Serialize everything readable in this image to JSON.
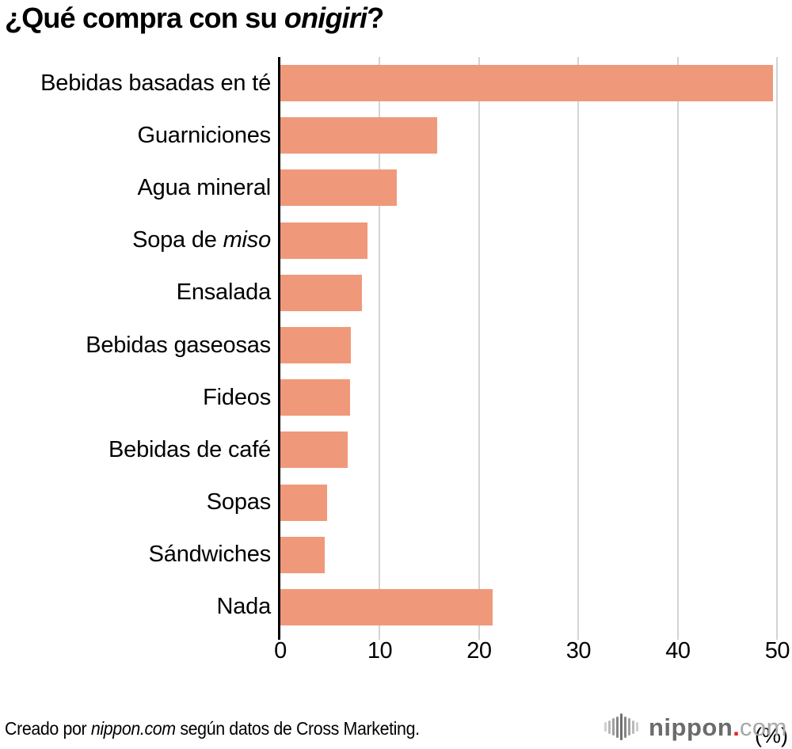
{
  "title_parts": [
    [
      "¿Qué compra con su ",
      false
    ],
    [
      "onigiri",
      true
    ],
    [
      "?",
      false
    ]
  ],
  "chart_data": {
    "type": "bar",
    "orientation": "horizontal",
    "title": "¿Qué compra con su onigiri?",
    "categories": [
      "Bebidas basadas en té",
      "Guarniciones",
      "Agua mineral",
      "Sopa de miso",
      "Ensalada",
      "Bebidas gaseosas",
      "Fideos",
      "Bebidas de café",
      "Sopas",
      "Sándwiches",
      "Nada"
    ],
    "values": [
      49.6,
      15.8,
      11.7,
      8.8,
      8.2,
      7.1,
      7.0,
      6.8,
      4.7,
      4.5,
      21.4
    ],
    "label_markup": [
      [
        [
          "Bebidas basadas en té",
          false
        ]
      ],
      [
        [
          "Guarniciones",
          false
        ]
      ],
      [
        [
          "Agua mineral",
          false
        ]
      ],
      [
        [
          "Sopa de ",
          false
        ],
        [
          "miso",
          true
        ]
      ],
      [
        [
          "Ensalada",
          false
        ]
      ],
      [
        [
          "Bebidas gaseosas",
          false
        ]
      ],
      [
        [
          "Fideos",
          false
        ]
      ],
      [
        [
          "Bebidas de café",
          false
        ]
      ],
      [
        [
          "Sopas",
          false
        ]
      ],
      [
        [
          "Sándwiches",
          false
        ]
      ],
      [
        [
          "Nada",
          false
        ]
      ]
    ],
    "xlabel": "(%)",
    "xticks": [
      "0",
      "10",
      "20",
      "30",
      "40",
      "50"
    ],
    "xlim": [
      0,
      50.85
    ],
    "grid": true,
    "legend": null,
    "bar_color": "#F0997A",
    "gridline_color": "#D4D4D4",
    "axis_color": "#000000"
  },
  "footer_parts": [
    [
      "Creado por ",
      false
    ],
    [
      "nippon.com",
      true
    ],
    [
      " según datos de Cross Marketing.",
      false
    ]
  ],
  "logo": {
    "name": "nippon",
    "dot": ".",
    "tld": "com"
  }
}
